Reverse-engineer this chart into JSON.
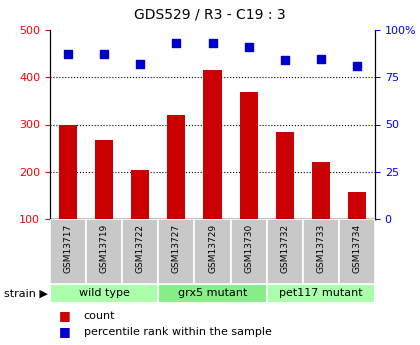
{
  "title": "GDS529 / R3 - C19 : 3",
  "samples": [
    "GSM13717",
    "GSM13719",
    "GSM13722",
    "GSM13727",
    "GSM13729",
    "GSM13730",
    "GSM13732",
    "GSM13733",
    "GSM13734"
  ],
  "counts": [
    300,
    268,
    204,
    320,
    416,
    368,
    284,
    220,
    158
  ],
  "percentile_ranks": [
    450,
    450,
    428,
    472,
    472,
    464,
    436,
    438,
    424
  ],
  "groups": [
    {
      "label": "wild type",
      "start": 0,
      "end": 3
    },
    {
      "label": "grx5 mutant",
      "start": 3,
      "end": 6
    },
    {
      "label": "pet117 mutant",
      "start": 6,
      "end": 9
    }
  ],
  "bar_color": "#cc0000",
  "dot_color": "#0000cc",
  "ylim_left": [
    100,
    500
  ],
  "ylim_right": [
    0,
    100
  ],
  "yticks_left": [
    100,
    200,
    300,
    400,
    500
  ],
  "yticks_right": [
    0,
    25,
    50,
    75,
    100
  ],
  "ytick_labels_right": [
    "0",
    "25",
    "50",
    "75",
    "100%"
  ],
  "grid_lines": [
    200,
    300,
    400
  ],
  "group_colors": [
    "#aaffaa",
    "#88ee88",
    "#aaffaa"
  ],
  "strain_label": "strain ▶",
  "legend_count": "count",
  "legend_pct": "percentile rank within the sample"
}
